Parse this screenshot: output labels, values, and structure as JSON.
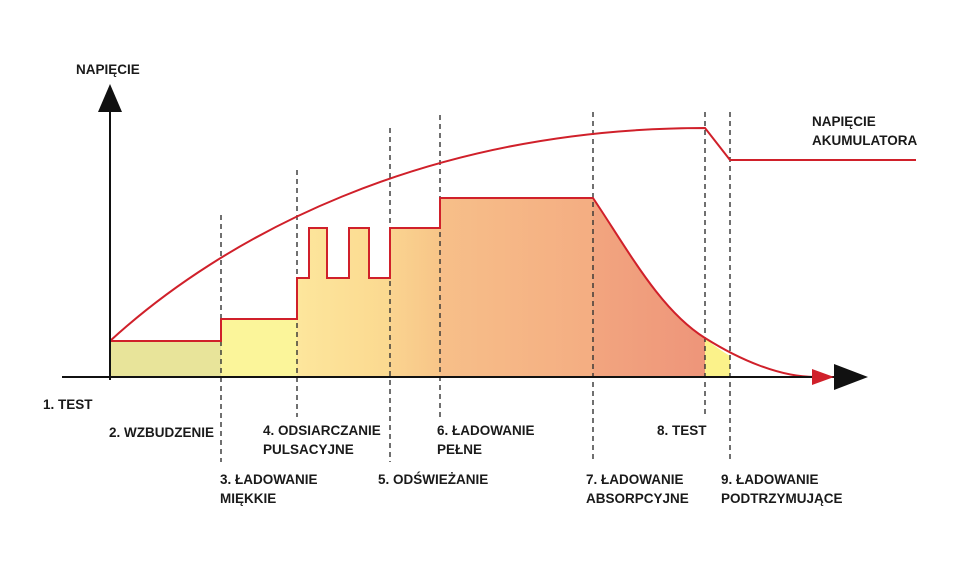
{
  "diagram": {
    "axis_label_y": "NAPIĘCIE",
    "curve_label": [
      "NAPIĘCIE",
      "AKUMULATORA"
    ],
    "stages": [
      {
        "id": "s1",
        "lines": [
          "1. TEST"
        ]
      },
      {
        "id": "s2",
        "lines": [
          "2. WZBUDZENIE"
        ]
      },
      {
        "id": "s3",
        "lines": [
          "3. ŁADOWANIE",
          "MIĘKKIE"
        ]
      },
      {
        "id": "s4",
        "lines": [
          "4. ODSIARCZANIE",
          "PULSACYJNE"
        ]
      },
      {
        "id": "s5",
        "lines": [
          "5. ODŚWIEŻANIE"
        ]
      },
      {
        "id": "s6",
        "lines": [
          "6. ŁADOWANIE",
          "PEŁNE"
        ]
      },
      {
        "id": "s7",
        "lines": [
          "7. ŁADOWANIE",
          "ABSORPCYJNE"
        ]
      },
      {
        "id": "s8",
        "lines": [
          "8. TEST"
        ]
      },
      {
        "id": "s9",
        "lines": [
          "9. ŁADOWANIE",
          "PODTRZYMUJĄCE"
        ]
      }
    ],
    "colors": {
      "axis": "#111111",
      "curve": "#d0202a",
      "divider": "#333333",
      "fill_stage2": "#e8e49a",
      "fill_stage3": "#fbf59a",
      "fill_stage4": "#fde39a",
      "fill_stage5": "#f9cc8a",
      "fill_stage6": "#f5b585",
      "fill_stage7": "#f0a07d",
      "fill_stage8": "#fbf28a"
    }
  }
}
